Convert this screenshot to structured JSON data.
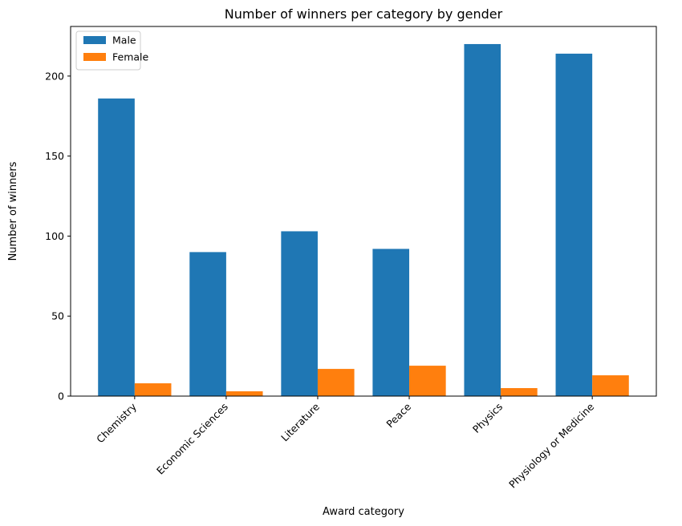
{
  "chart_data": {
    "type": "bar",
    "title": "Number of winners per category by gender",
    "xlabel": "Award category",
    "ylabel": "Number of winners",
    "categories": [
      "Chemistry",
      "Economic Sciences",
      "Literature",
      "Peace",
      "Physics",
      "Physiology or Medicine"
    ],
    "series": [
      {
        "name": "Male",
        "color": "#1f77b4",
        "values": [
          186,
          90,
          103,
          92,
          220,
          214
        ]
      },
      {
        "name": "Female",
        "color": "#ff7f0e",
        "values": [
          8,
          3,
          17,
          19,
          5,
          13
        ]
      }
    ],
    "ylim": [
      0,
      231
    ],
    "yticks": [
      0,
      50,
      100,
      150,
      200
    ],
    "grid": false,
    "legend_position": "top-left"
  }
}
